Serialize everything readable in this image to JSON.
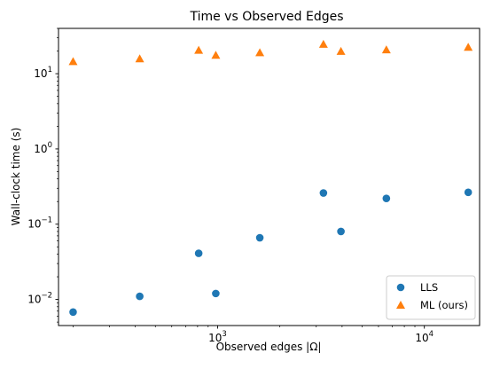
{
  "chart_data": {
    "type": "scatter",
    "title": "Time vs Observed Edges",
    "xlabel": "Observed edges |Ω|",
    "ylabel": "Wall-clock time (s)",
    "xscale": "log",
    "yscale": "log",
    "xlim": [
      170,
      18500
    ],
    "ylim": [
      0.0045,
      40
    ],
    "grid": false,
    "legend_position": "lower-right",
    "x_ticks": [
      {
        "value": 1000,
        "base": "10",
        "exp": "3"
      },
      {
        "value": 10000,
        "base": "10",
        "exp": "4"
      }
    ],
    "y_ticks": [
      {
        "value": 0.01,
        "base": "10",
        "exp": "−2"
      },
      {
        "value": 0.1,
        "base": "10",
        "exp": "−1"
      },
      {
        "value": 1,
        "base": "10",
        "exp": "0"
      },
      {
        "value": 10,
        "base": "10",
        "exp": "1"
      }
    ],
    "series": [
      {
        "name": "LLS",
        "marker": "circle",
        "color": "#1f77b4",
        "points": [
          [
            200,
            0.0068
          ],
          [
            420,
            0.011
          ],
          [
            810,
            0.041
          ],
          [
            980,
            0.012
          ],
          [
            1600,
            0.066
          ],
          [
            3250,
            0.26
          ],
          [
            3950,
            0.08
          ],
          [
            6550,
            0.22
          ],
          [
            16300,
            0.265
          ]
        ]
      },
      {
        "name": "ML (ours)",
        "marker": "triangle",
        "color": "#ff7f0e",
        "points": [
          [
            200,
            14.5
          ],
          [
            420,
            15.8
          ],
          [
            810,
            20.5
          ],
          [
            980,
            17.6
          ],
          [
            1600,
            19.0
          ],
          [
            3250,
            24.6
          ],
          [
            3950,
            19.8
          ],
          [
            6550,
            20.8
          ],
          [
            16300,
            22.5
          ]
        ]
      }
    ]
  }
}
